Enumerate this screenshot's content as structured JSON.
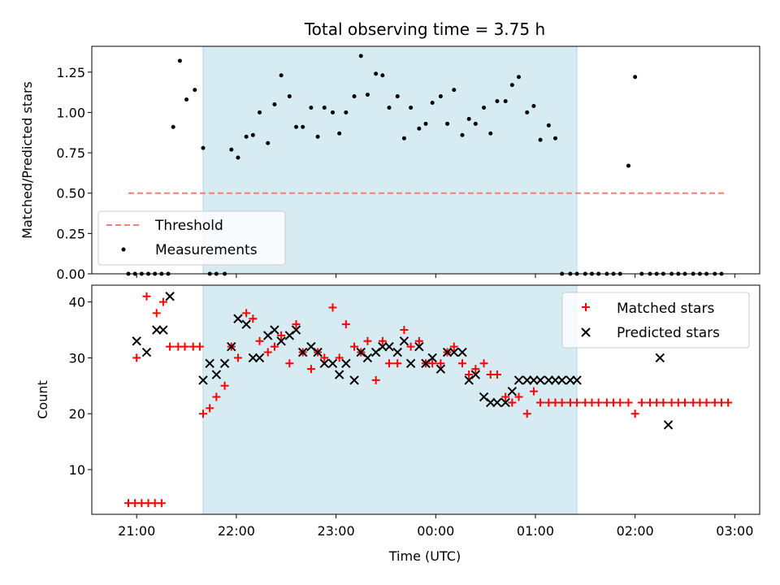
{
  "chart_data": [
    {
      "type": "scatter",
      "title": "Total observing time = 3.75 h",
      "xlabel": "",
      "ylabel": "Matched/Predicted stars",
      "ylim": [
        0,
        1.41
      ],
      "yticks": [
        "0.00",
        "0.25",
        "0.50",
        "0.75",
        "1.00",
        "1.25"
      ],
      "yticks_values": [
        0,
        0.25,
        0.5,
        0.75,
        1.0,
        1.25
      ],
      "xlim": [
        "20:33",
        "03:15"
      ],
      "highlight_interval": [
        "21:40",
        "01:25"
      ],
      "highlight_color": "#add8e6",
      "threshold": {
        "name": "Threshold",
        "value": 0.5,
        "x_start": "20:55",
        "x_end": "02:54",
        "color": "#f08080",
        "style": "dashed"
      },
      "series": [
        {
          "name": "Measurements",
          "marker": "dot",
          "color": "#000000",
          "x": [
            "20:55",
            "20:59",
            "21:03",
            "21:07",
            "21:11",
            "21:15",
            "21:19",
            "21:22",
            "21:26",
            "21:30",
            "21:35",
            "21:40",
            "21:44",
            "21:48",
            "21:53",
            "21:57",
            "22:01",
            "22:06",
            "22:10",
            "22:14",
            "22:19",
            "22:23",
            "22:27",
            "22:32",
            "22:36",
            "22:40",
            "22:45",
            "22:49",
            "22:53",
            "22:58",
            "23:02",
            "23:06",
            "23:11",
            "23:15",
            "23:19",
            "23:24",
            "23:28",
            "23:32",
            "23:37",
            "23:41",
            "23:45",
            "23:50",
            "23:54",
            "23:58",
            "00:03",
            "00:07",
            "00:11",
            "00:16",
            "00:20",
            "00:24",
            "00:29",
            "00:33",
            "00:37",
            "00:42",
            "00:46",
            "00:50",
            "00:55",
            "00:59",
            "01:03",
            "01:08",
            "01:12",
            "01:16",
            "01:21",
            "01:25",
            "01:30",
            "01:34",
            "01:38",
            "01:43",
            "01:47",
            "01:51",
            "01:56",
            "02:00",
            "02:04",
            "02:09",
            "02:13",
            "02:17",
            "02:22",
            "02:26",
            "02:30",
            "02:35",
            "02:39",
            "02:43",
            "02:48",
            "02:52"
          ],
          "y": [
            0,
            0,
            0,
            0,
            0,
            0,
            0,
            0.91,
            1.32,
            1.08,
            1.14,
            0.78,
            0,
            0,
            0,
            0.77,
            0.72,
            0.85,
            0.86,
            1.0,
            0.81,
            1.05,
            1.23,
            1.1,
            0.91,
            0.91,
            1.03,
            0.85,
            1.03,
            1.0,
            0.87,
            1.0,
            1.1,
            1.35,
            1.11,
            1.24,
            1.23,
            1.03,
            1.1,
            0.84,
            1.03,
            0.9,
            0.93,
            1.06,
            1.1,
            0.93,
            1.14,
            0.86,
            0.96,
            0.93,
            1.03,
            0.87,
            1.07,
            1.07,
            1.17,
            1.22,
            1.0,
            1.04,
            0.83,
            0.92,
            0.84,
            0,
            0,
            0,
            0,
            0,
            0,
            0,
            0,
            0,
            0.67,
            1.22,
            0,
            0,
            0,
            0,
            0,
            0,
            0,
            0,
            0,
            0,
            0,
            0
          ]
        }
      ]
    },
    {
      "type": "scatter",
      "title": "",
      "xlabel": "Time (UTC)",
      "ylabel": "Count",
      "ylim": [
        2,
        43
      ],
      "yticks": [
        "10",
        "20",
        "30",
        "40"
      ],
      "yticks_values": [
        10,
        20,
        30,
        40
      ],
      "xlim": [
        "20:33",
        "03:15"
      ],
      "xticks": [
        "21:00",
        "22:00",
        "23:00",
        "00:00",
        "01:00",
        "02:00",
        "03:00"
      ],
      "highlight_interval": [
        "21:40",
        "01:25"
      ],
      "highlight_color": "#add8e6",
      "series": [
        {
          "name": "Matched stars",
          "marker": "plus",
          "color": "#ff0000",
          "x": [
            "20:55",
            "20:59",
            "21:03",
            "21:07",
            "21:11",
            "21:15",
            "21:00",
            "21:06",
            "21:12",
            "21:16",
            "21:20",
            "21:25",
            "21:29",
            "21:34",
            "21:38",
            "21:40",
            "21:44",
            "21:48",
            "21:53",
            "21:57",
            "22:01",
            "22:06",
            "22:10",
            "22:14",
            "22:19",
            "22:23",
            "22:27",
            "22:32",
            "22:36",
            "22:40",
            "22:45",
            "22:49",
            "22:53",
            "22:58",
            "23:02",
            "23:06",
            "23:11",
            "23:15",
            "23:19",
            "23:24",
            "23:28",
            "23:32",
            "23:37",
            "23:41",
            "23:45",
            "23:50",
            "23:54",
            "23:58",
            "00:03",
            "00:07",
            "00:11",
            "00:16",
            "00:20",
            "00:24",
            "00:29",
            "00:33",
            "00:37",
            "00:42",
            "00:46",
            "00:50",
            "00:55",
            "00:59",
            "01:03",
            "01:08",
            "01:12",
            "01:16",
            "01:21",
            "01:25",
            "01:30",
            "01:34",
            "01:38",
            "01:43",
            "01:47",
            "01:51",
            "01:56",
            "02:00",
            "02:04",
            "02:09",
            "02:13",
            "02:17",
            "02:22",
            "02:26",
            "02:30",
            "02:35",
            "02:39",
            "02:43",
            "02:48",
            "02:52",
            "02:56"
          ],
          "y": [
            4,
            4,
            4,
            4,
            4,
            4,
            30,
            41,
            38,
            40,
            32,
            32,
            32,
            32,
            32,
            20,
            21,
            23,
            25,
            32,
            30,
            38,
            37,
            33,
            31,
            32,
            34,
            29,
            36,
            31,
            28,
            31,
            30,
            39,
            30,
            36,
            32,
            31,
            33,
            26,
            33,
            29,
            29,
            35,
            32,
            33,
            29,
            29,
            29,
            31,
            32,
            29,
            27,
            28,
            29,
            27,
            27,
            23,
            22,
            23,
            20,
            24,
            22,
            22,
            22,
            22,
            22,
            22,
            22,
            22,
            22,
            22,
            22,
            22,
            22,
            20,
            22,
            22,
            22,
            22,
            22,
            22,
            22,
            22,
            22,
            22,
            22,
            22,
            22
          ]
        },
        {
          "name": "Predicted stars",
          "marker": "x",
          "color": "#000000",
          "x": [
            "21:00",
            "21:06",
            "21:12",
            "21:16",
            "21:20",
            "21:40",
            "21:44",
            "21:48",
            "21:53",
            "21:57",
            "22:01",
            "22:06",
            "22:10",
            "22:14",
            "22:19",
            "22:23",
            "22:27",
            "22:32",
            "22:36",
            "22:40",
            "22:45",
            "22:49",
            "22:53",
            "22:58",
            "23:02",
            "23:06",
            "23:11",
            "23:15",
            "23:19",
            "23:24",
            "23:28",
            "23:32",
            "23:37",
            "23:41",
            "23:45",
            "23:50",
            "23:54",
            "23:58",
            "00:03",
            "00:07",
            "00:11",
            "00:16",
            "00:20",
            "00:24",
            "00:29",
            "00:33",
            "00:37",
            "00:42",
            "00:46",
            "00:50",
            "00:55",
            "00:59",
            "01:03",
            "01:08",
            "01:12",
            "01:16",
            "01:21",
            "01:25",
            "02:15",
            "02:20"
          ],
          "y": [
            33,
            31,
            35,
            35,
            41,
            26,
            29,
            27,
            29,
            32,
            37,
            36,
            30,
            30,
            34,
            35,
            33,
            34,
            35,
            31,
            32,
            31,
            29,
            29,
            27,
            29,
            26,
            31,
            30,
            31,
            32,
            32,
            31,
            33,
            29,
            32,
            29,
            30,
            28,
            31,
            31,
            31,
            26,
            27,
            23,
            22,
            22,
            22,
            24,
            26,
            26,
            26,
            26,
            26,
            26,
            26,
            26,
            26,
            30,
            18
          ]
        }
      ],
      "legend_placement": "top-right"
    }
  ]
}
